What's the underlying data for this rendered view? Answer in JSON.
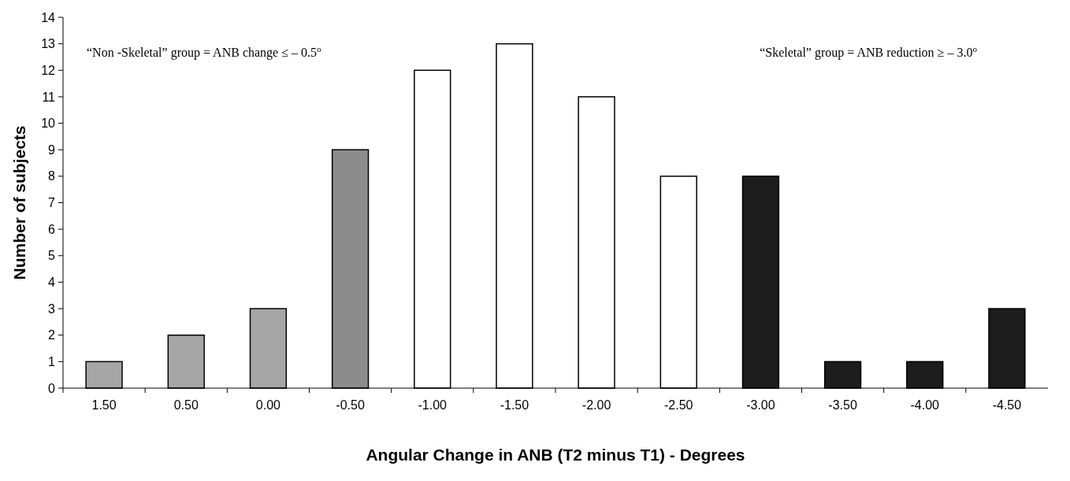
{
  "chart_data": {
    "type": "bar",
    "xlabel": "Angular Change in ANB (T2 minus T1) - Degrees",
    "ylabel": "Number of subjects",
    "categories": [
      "1.50",
      "0.50",
      "0.00",
      "-0.50",
      "-1.00",
      "-1.50",
      "-2.00",
      "-2.50",
      "-3.00",
      "-3.50",
      "-4.00",
      "-4.50"
    ],
    "values": [
      1,
      2,
      3,
      9,
      12,
      13,
      11,
      8,
      8,
      1,
      1,
      3
    ],
    "colors": [
      "#a6a6a6",
      "#a6a6a6",
      "#a6a6a6",
      "#8c8c8c",
      "#ffffff",
      "#ffffff",
      "#ffffff",
      "#ffffff",
      "#1c1c1c",
      "#1c1c1c",
      "#1c1c1c",
      "#1c1c1c"
    ],
    "ylim": [
      0,
      14
    ],
    "yticks": [
      0,
      1,
      2,
      3,
      4,
      5,
      6,
      7,
      8,
      9,
      10,
      11,
      12,
      13,
      14
    ],
    "annotations": [
      "“Non -Skeletal” group = ANB change ≤ – 0.5$^{o}$",
      "“Skeletal” group = ANB reduction ≥ – 3.0$^{o}$"
    ]
  }
}
